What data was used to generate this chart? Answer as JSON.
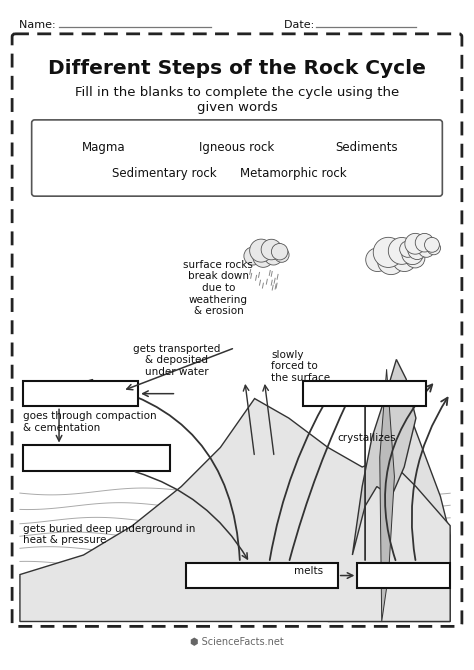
{
  "title": "Different Steps of the Rock Cycle",
  "subtitle": "Fill in the blanks to complete the cycle using the\ngiven words",
  "name_label": "Name: ",
  "date_label": "Date: ",
  "word_bank_row1": [
    [
      "Magma",
      0.17
    ],
    [
      "Igneous rock",
      0.5
    ],
    [
      "Sediments",
      0.82
    ]
  ],
  "word_bank_row2": [
    [
      "Sedimentary rock",
      0.32
    ],
    [
      "Metamorphic rock",
      0.64
    ]
  ],
  "labels": {
    "weathering": "surface rocks\nbreak down\ndue to\nweathering\n& erosion",
    "transport": "gets transported\n& deposited\nunder water",
    "compaction": "goes through compaction\n& cementation",
    "buried": "gets buried deep underground in\nheat & pressure",
    "forced": "slowly\nforced to\nthe surface",
    "crystallizes": "crystallizes",
    "melts": "melts"
  },
  "bg_color": "#ffffff",
  "text_color": "#111111",
  "line_color": "#333333",
  "light_gray": "#e8e8e8",
  "med_gray": "#c8c8c8"
}
